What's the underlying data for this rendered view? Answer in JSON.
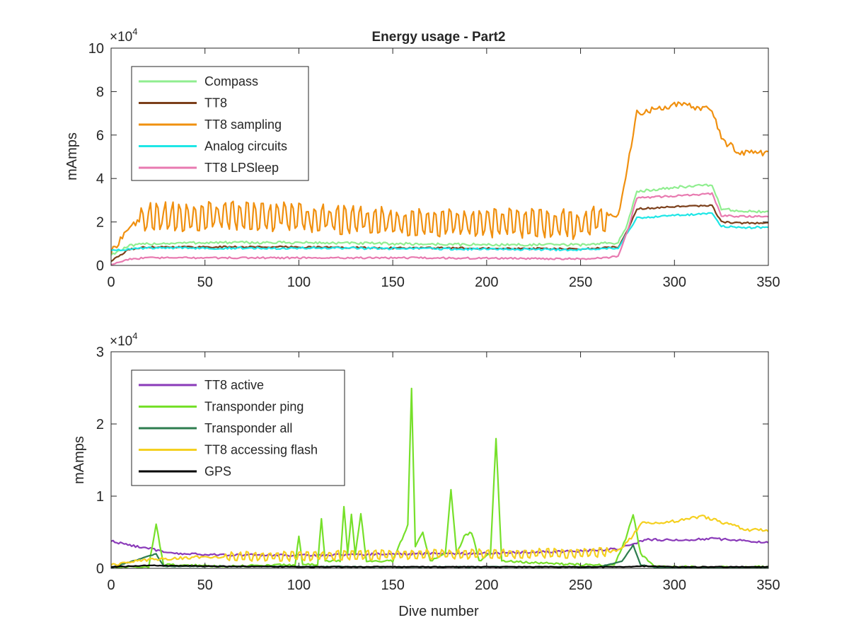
{
  "chart_data": [
    {
      "type": "line",
      "title": "Energy usage - Part2",
      "xlabel": "",
      "ylabel": "mAmps",
      "exponent_label": "×10",
      "exponent_power": "4",
      "xlim": [
        0,
        350
      ],
      "ylim": [
        0,
        10
      ],
      "y_scale_factor": 10000,
      "xticks": [
        "0",
        "50",
        "100",
        "150",
        "200",
        "250",
        "300",
        "350"
      ],
      "yticks": [
        "0",
        "2",
        "4",
        "6",
        "8",
        "10"
      ],
      "grid": false,
      "legend_position": "top-left",
      "x": [
        0,
        10,
        20,
        50,
        100,
        150,
        200,
        250,
        270,
        275,
        280,
        300,
        320,
        325,
        335,
        350
      ],
      "series": [
        {
          "name": "Compass",
          "color": "#90ee90",
          "values": [
            0.5,
            0.9,
            1.0,
            1.05,
            1.05,
            1.0,
            0.95,
            0.95,
            1.05,
            1.9,
            3.4,
            3.6,
            3.7,
            2.6,
            2.5,
            2.45
          ]
        },
        {
          "name": "TT8",
          "color": "#7b3f1a",
          "values": [
            0.2,
            0.75,
            0.85,
            0.85,
            0.85,
            0.8,
            0.8,
            0.75,
            0.85,
            1.6,
            2.6,
            2.7,
            2.75,
            2.0,
            1.95,
            1.95
          ]
        },
        {
          "name": "TT8 sampling",
          "color": "#f0900f",
          "values": [
            0.6,
            1.8,
            2.2,
            2.3,
            2.2,
            2.0,
            1.95,
            1.9,
            2.3,
            4.5,
            7.0,
            7.4,
            7.2,
            5.8,
            5.2,
            5.2
          ]
        },
        {
          "name": "Analog circuits",
          "color": "#1ee6e6",
          "values": [
            0.7,
            0.75,
            0.8,
            0.8,
            0.8,
            0.78,
            0.75,
            0.72,
            0.8,
            1.5,
            2.2,
            2.3,
            2.4,
            1.8,
            1.75,
            1.75
          ]
        },
        {
          "name": "TT8 LPSleep",
          "color": "#e87ab0",
          "values": [
            0.05,
            0.3,
            0.35,
            0.35,
            0.35,
            0.35,
            0.33,
            0.3,
            0.4,
            1.6,
            3.1,
            3.2,
            3.3,
            2.3,
            2.25,
            2.25
          ]
        }
      ]
    },
    {
      "type": "line",
      "title": "",
      "xlabel": "Dive number",
      "ylabel": "mAmps",
      "exponent_label": "×10",
      "exponent_power": "4",
      "xlim": [
        0,
        350
      ],
      "ylim": [
        0,
        3
      ],
      "y_scale_factor": 10000,
      "xticks": [
        "0",
        "50",
        "100",
        "150",
        "200",
        "250",
        "300",
        "350"
      ],
      "yticks": [
        "0",
        "1",
        "2",
        "3"
      ],
      "grid": false,
      "legend_position": "top-left",
      "series": [
        {
          "name": "TT8 active",
          "color": "#8a3ab9",
          "points": [
            [
              0,
              0.38
            ],
            [
              10,
              0.32
            ],
            [
              20,
              0.28
            ],
            [
              30,
              0.21
            ],
            [
              50,
              0.19
            ],
            [
              100,
              0.18
            ],
            [
              150,
              0.2
            ],
            [
              200,
              0.21
            ],
            [
              250,
              0.24
            ],
            [
              270,
              0.27
            ],
            [
              278,
              0.34
            ],
            [
              285,
              0.4
            ],
            [
              300,
              0.39
            ],
            [
              320,
              0.41
            ],
            [
              340,
              0.38
            ],
            [
              350,
              0.36
            ]
          ]
        },
        {
          "name": "Transponder ping",
          "color": "#76e02a",
          "points": [
            [
              0,
              0.01
            ],
            [
              20,
              0.02
            ],
            [
              24,
              0.6
            ],
            [
              28,
              0.05
            ],
            [
              60,
              0.03
            ],
            [
              98,
              0.05
            ],
            [
              100,
              0.45
            ],
            [
              102,
              0.05
            ],
            [
              110,
              0.05
            ],
            [
              112,
              0.7
            ],
            [
              114,
              0.1
            ],
            [
              122,
              0.1
            ],
            [
              124,
              0.85
            ],
            [
              126,
              0.2
            ],
            [
              128,
              0.75
            ],
            [
              130,
              0.2
            ],
            [
              133,
              0.75
            ],
            [
              136,
              0.1
            ],
            [
              150,
              0.1
            ],
            [
              154,
              0.35
            ],
            [
              158,
              0.6
            ],
            [
              160,
              2.5
            ],
            [
              162,
              0.3
            ],
            [
              166,
              0.5
            ],
            [
              170,
              0.1
            ],
            [
              178,
              0.2
            ],
            [
              181,
              1.1
            ],
            [
              184,
              0.2
            ],
            [
              188,
              0.45
            ],
            [
              192,
              0.5
            ],
            [
              196,
              0.1
            ],
            [
              202,
              0.2
            ],
            [
              205,
              1.8
            ],
            [
              208,
              0.1
            ],
            [
              250,
              0.05
            ],
            [
              268,
              0.05
            ],
            [
              274,
              0.4
            ],
            [
              278,
              0.75
            ],
            [
              282,
              0.2
            ],
            [
              290,
              0.02
            ],
            [
              350,
              0.02
            ]
          ]
        },
        {
          "name": "Transponder all",
          "color": "#2e7d4f",
          "points": [
            [
              0,
              0.01
            ],
            [
              24,
              0.2
            ],
            [
              28,
              0.03
            ],
            [
              150,
              0.02
            ],
            [
              200,
              0.02
            ],
            [
              260,
              0.02
            ],
            [
              272,
              0.1
            ],
            [
              278,
              0.32
            ],
            [
              282,
              0.05
            ],
            [
              290,
              0.01
            ],
            [
              350,
              0.01
            ]
          ]
        },
        {
          "name": "TT8 accessing flash",
          "color": "#f5d020",
          "points": [
            [
              0,
              0.05
            ],
            [
              20,
              0.12
            ],
            [
              50,
              0.16
            ],
            [
              100,
              0.17
            ],
            [
              150,
              0.19
            ],
            [
              200,
              0.2
            ],
            [
              250,
              0.21
            ],
            [
              270,
              0.24
            ],
            [
              278,
              0.45
            ],
            [
              282,
              0.62
            ],
            [
              300,
              0.65
            ],
            [
              315,
              0.72
            ],
            [
              330,
              0.6
            ],
            [
              340,
              0.53
            ],
            [
              350,
              0.53
            ]
          ]
        },
        {
          "name": "GPS",
          "color": "#000000",
          "points": [
            [
              0,
              0.02
            ],
            [
              20,
              0.04
            ],
            [
              50,
              0.03
            ],
            [
              100,
              0.02
            ],
            [
              150,
              0.02
            ],
            [
              200,
              0.02
            ],
            [
              250,
              0.02
            ],
            [
              270,
              0.02
            ],
            [
              285,
              0.03
            ],
            [
              300,
              0.02
            ],
            [
              350,
              0.02
            ]
          ]
        }
      ]
    }
  ]
}
